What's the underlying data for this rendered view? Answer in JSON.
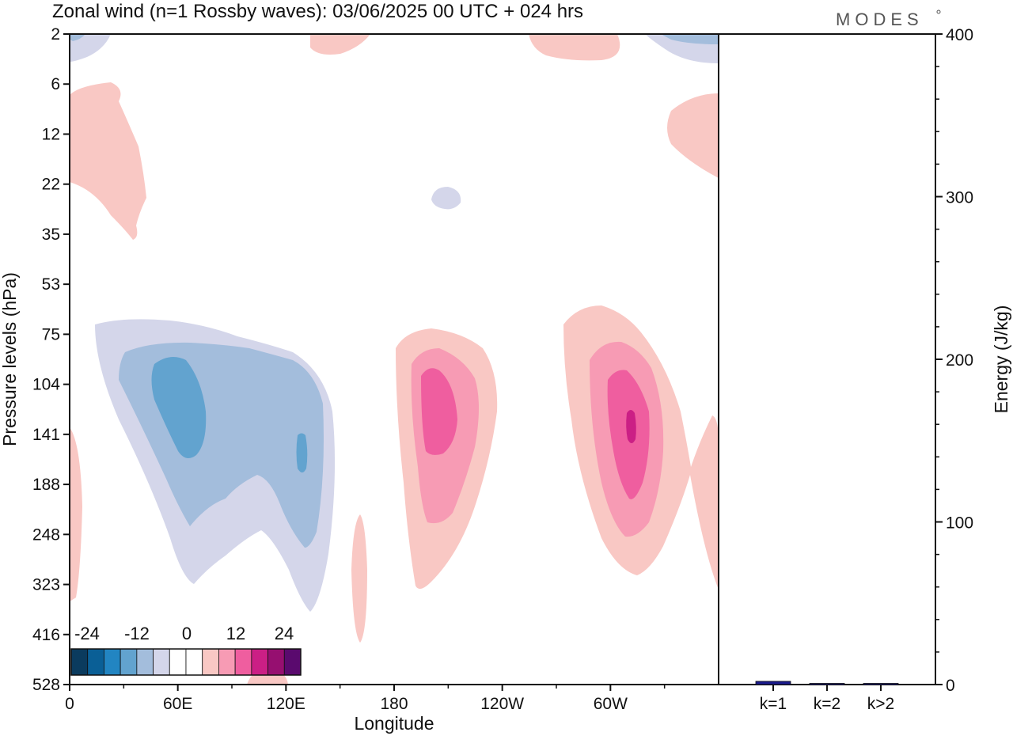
{
  "chart_data": [
    {
      "type": "contour",
      "title": "Zonal wind (n=1 Rossby waves):  03/06/2025  00 UTC  + 024 hrs",
      "brand": "MODES",
      "xlabel": "Longitude",
      "ylabel": "Pressure levels (hPa)",
      "x_ticks": [
        "0",
        "60E",
        "120E",
        "180",
        "120W",
        "60W"
      ],
      "x_tick_values": [
        0,
        60,
        120,
        180,
        240,
        300
      ],
      "xlim": [
        0,
        360
      ],
      "y_ticks": [
        "2",
        "6",
        "12",
        "22",
        "35",
        "53",
        "75",
        "104",
        "141",
        "188",
        "248",
        "323",
        "416",
        "528"
      ],
      "y_axis": "pressure levels, top 2 hPa to bottom 528 hPa (one tick per level)",
      "colorbar": {
        "labels": [
          "-24",
          "-12",
          "0",
          "12",
          "24"
        ],
        "colors": [
          "#0b3b5e",
          "#0a5f96",
          "#2285c2",
          "#62a3cf",
          "#a3bddc",
          "#d4d6ea",
          "#ffffff",
          "#ffffff",
          "#f9c8c4",
          "#f79bb4",
          "#ef5e9f",
          "#cb1f85",
          "#960f70",
          "#5a0a6e"
        ]
      },
      "regions": [
        {
          "name": "negative anomaly 60E-130E",
          "center_lon": 65,
          "center_level": "141",
          "min_value": -15
        },
        {
          "name": "positive anomaly near 180-160W",
          "center_lon": 190,
          "center_level": "141",
          "max_value": 12
        },
        {
          "name": "positive anomaly near 70W",
          "center_lon": 295,
          "center_level": "141",
          "max_value": 21
        }
      ]
    },
    {
      "type": "bar",
      "ylabel": "Energy (J/kg)",
      "categories": [
        "k=1",
        "k=2",
        "k>2"
      ],
      "values": [
        2,
        0.3,
        0.5
      ],
      "ylim": [
        0,
        400
      ],
      "y_ticks": [
        "0",
        "100",
        "200",
        "300",
        "400"
      ],
      "bar_color": "#1a1a8c"
    }
  ]
}
